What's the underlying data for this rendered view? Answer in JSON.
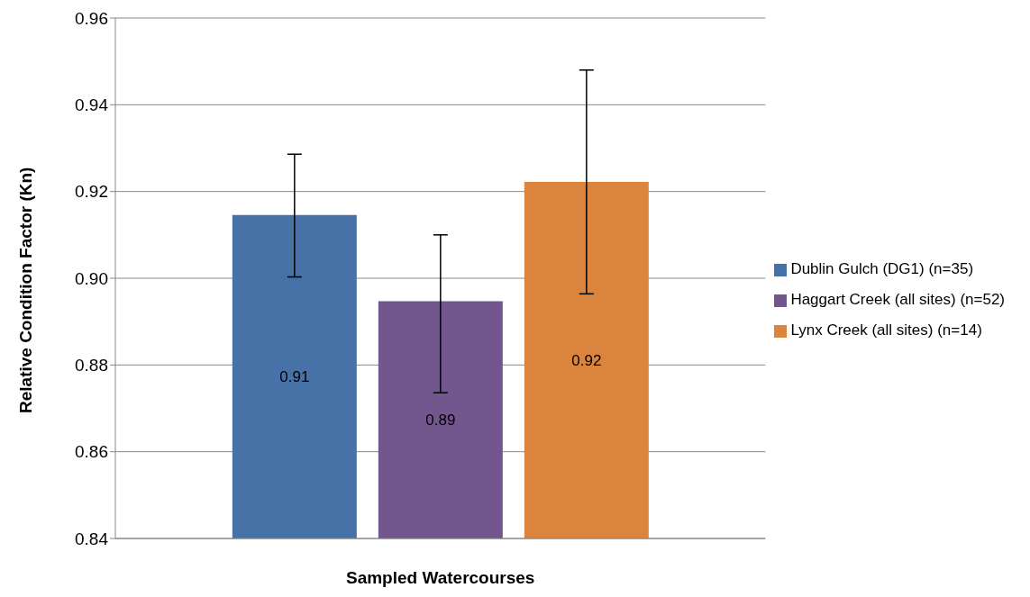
{
  "chart_data": {
    "type": "bar",
    "xlabel": "Sampled Watercourses",
    "ylabel": "Relative Condition Factor (Kn)",
    "categories": [
      null
    ],
    "series": [
      {
        "name": "Dublin Gulch (DG1) (n=35)",
        "color": "#4672a8",
        "values": [
          0.9146
        ],
        "errors": [
          [
            0.9003,
            0.9286
          ]
        ],
        "value_labels": [
          "0.91"
        ]
      },
      {
        "name": "Haggart Creek (all sites) (n=52)",
        "color": "#72578f",
        "values": [
          0.8947
        ],
        "errors": [
          [
            0.8736,
            0.91
          ]
        ],
        "value_labels": [
          "0.89"
        ]
      },
      {
        "name": "Lynx Creek (all sites) (n=14)",
        "color": "#db843d",
        "values": [
          0.9222
        ],
        "errors": [
          [
            0.8964,
            0.948
          ]
        ],
        "value_labels": [
          "0.92"
        ]
      }
    ],
    "ylim": [
      0.84,
      0.96
    ],
    "yticks": [
      0.84,
      0.86,
      0.88,
      {
        "value": 0.9,
        "label": "0.90"
      },
      0.92,
      0.94,
      0.96
    ],
    "grid": "y",
    "legend": "right"
  }
}
